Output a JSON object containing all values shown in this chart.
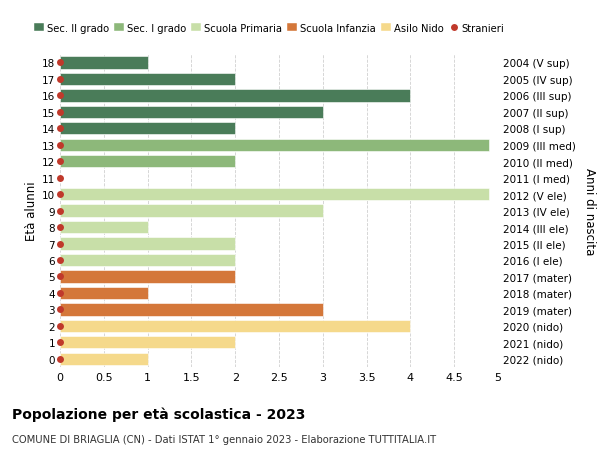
{
  "yticks": [
    0,
    1,
    2,
    3,
    4,
    5,
    6,
    7,
    8,
    9,
    10,
    11,
    12,
    13,
    14,
    15,
    16,
    17,
    18
  ],
  "ylabel_left": "Età alunni",
  "ylabel_right": "Anni di nascita",
  "right_labels": [
    "2022 (nido)",
    "2021 (nido)",
    "2020 (nido)",
    "2019 (mater)",
    "2018 (mater)",
    "2017 (mater)",
    "2016 (I ele)",
    "2015 (II ele)",
    "2014 (III ele)",
    "2013 (IV ele)",
    "2012 (V ele)",
    "2011 (I med)",
    "2010 (II med)",
    "2009 (III med)",
    "2008 (I sup)",
    "2007 (II sup)",
    "2006 (III sup)",
    "2005 (IV sup)",
    "2004 (V sup)"
  ],
  "bars": [
    {
      "y": 18,
      "value": 1,
      "color": "#4a7c59"
    },
    {
      "y": 17,
      "value": 2,
      "color": "#4a7c59"
    },
    {
      "y": 16,
      "value": 4,
      "color": "#4a7c59"
    },
    {
      "y": 15,
      "value": 3,
      "color": "#4a7c59"
    },
    {
      "y": 14,
      "value": 2,
      "color": "#4a7c59"
    },
    {
      "y": 13,
      "value": 4.9,
      "color": "#8db87a"
    },
    {
      "y": 12,
      "value": 2,
      "color": "#8db87a"
    },
    {
      "y": 11,
      "value": 0,
      "color": "#8db87a"
    },
    {
      "y": 10,
      "value": 4.9,
      "color": "#c8dfa8"
    },
    {
      "y": 9,
      "value": 3,
      "color": "#c8dfa8"
    },
    {
      "y": 8,
      "value": 1,
      "color": "#c8dfa8"
    },
    {
      "y": 7,
      "value": 2,
      "color": "#c8dfa8"
    },
    {
      "y": 6,
      "value": 2,
      "color": "#c8dfa8"
    },
    {
      "y": 5,
      "value": 2,
      "color": "#d4773a"
    },
    {
      "y": 4,
      "value": 1,
      "color": "#d4773a"
    },
    {
      "y": 3,
      "value": 3,
      "color": "#d4773a"
    },
    {
      "y": 2,
      "value": 4,
      "color": "#f5d98b"
    },
    {
      "y": 1,
      "value": 2,
      "color": "#f5d98b"
    },
    {
      "y": 0,
      "value": 1,
      "color": "#f5d98b"
    }
  ],
  "stranieri_y": [
    18,
    17,
    16,
    15,
    14,
    13,
    12,
    11,
    10,
    9,
    8,
    7,
    6,
    5,
    4,
    3,
    2,
    1,
    0
  ],
  "legend": [
    {
      "label": "Sec. II grado",
      "color": "#4a7c59",
      "type": "patch"
    },
    {
      "label": "Sec. I grado",
      "color": "#8db87a",
      "type": "patch"
    },
    {
      "label": "Scuola Primaria",
      "color": "#c8dfa8",
      "type": "patch"
    },
    {
      "label": "Scuola Infanzia",
      "color": "#d4773a",
      "type": "patch"
    },
    {
      "label": "Asilo Nido",
      "color": "#f5d98b",
      "type": "patch"
    },
    {
      "label": "Stranieri",
      "color": "#c0392b",
      "type": "dot"
    }
  ],
  "xlim": [
    0,
    5.0
  ],
  "ylim": [
    -0.5,
    18.5
  ],
  "xticks": [
    0,
    0.5,
    1.0,
    1.5,
    2.0,
    2.5,
    3.0,
    3.5,
    4.0,
    4.5,
    5.0
  ],
  "title": "Popolazione per età scolastica - 2023",
  "subtitle": "COMUNE DI BRIAGLIA (CN) - Dati ISTAT 1° gennaio 2023 - Elaborazione TUTTITALIA.IT",
  "bar_height": 0.75,
  "background_color": "#ffffff",
  "grid_color": "#d0d0d0",
  "stranieri_color": "#c0392b",
  "stranieri_markersize": 5
}
